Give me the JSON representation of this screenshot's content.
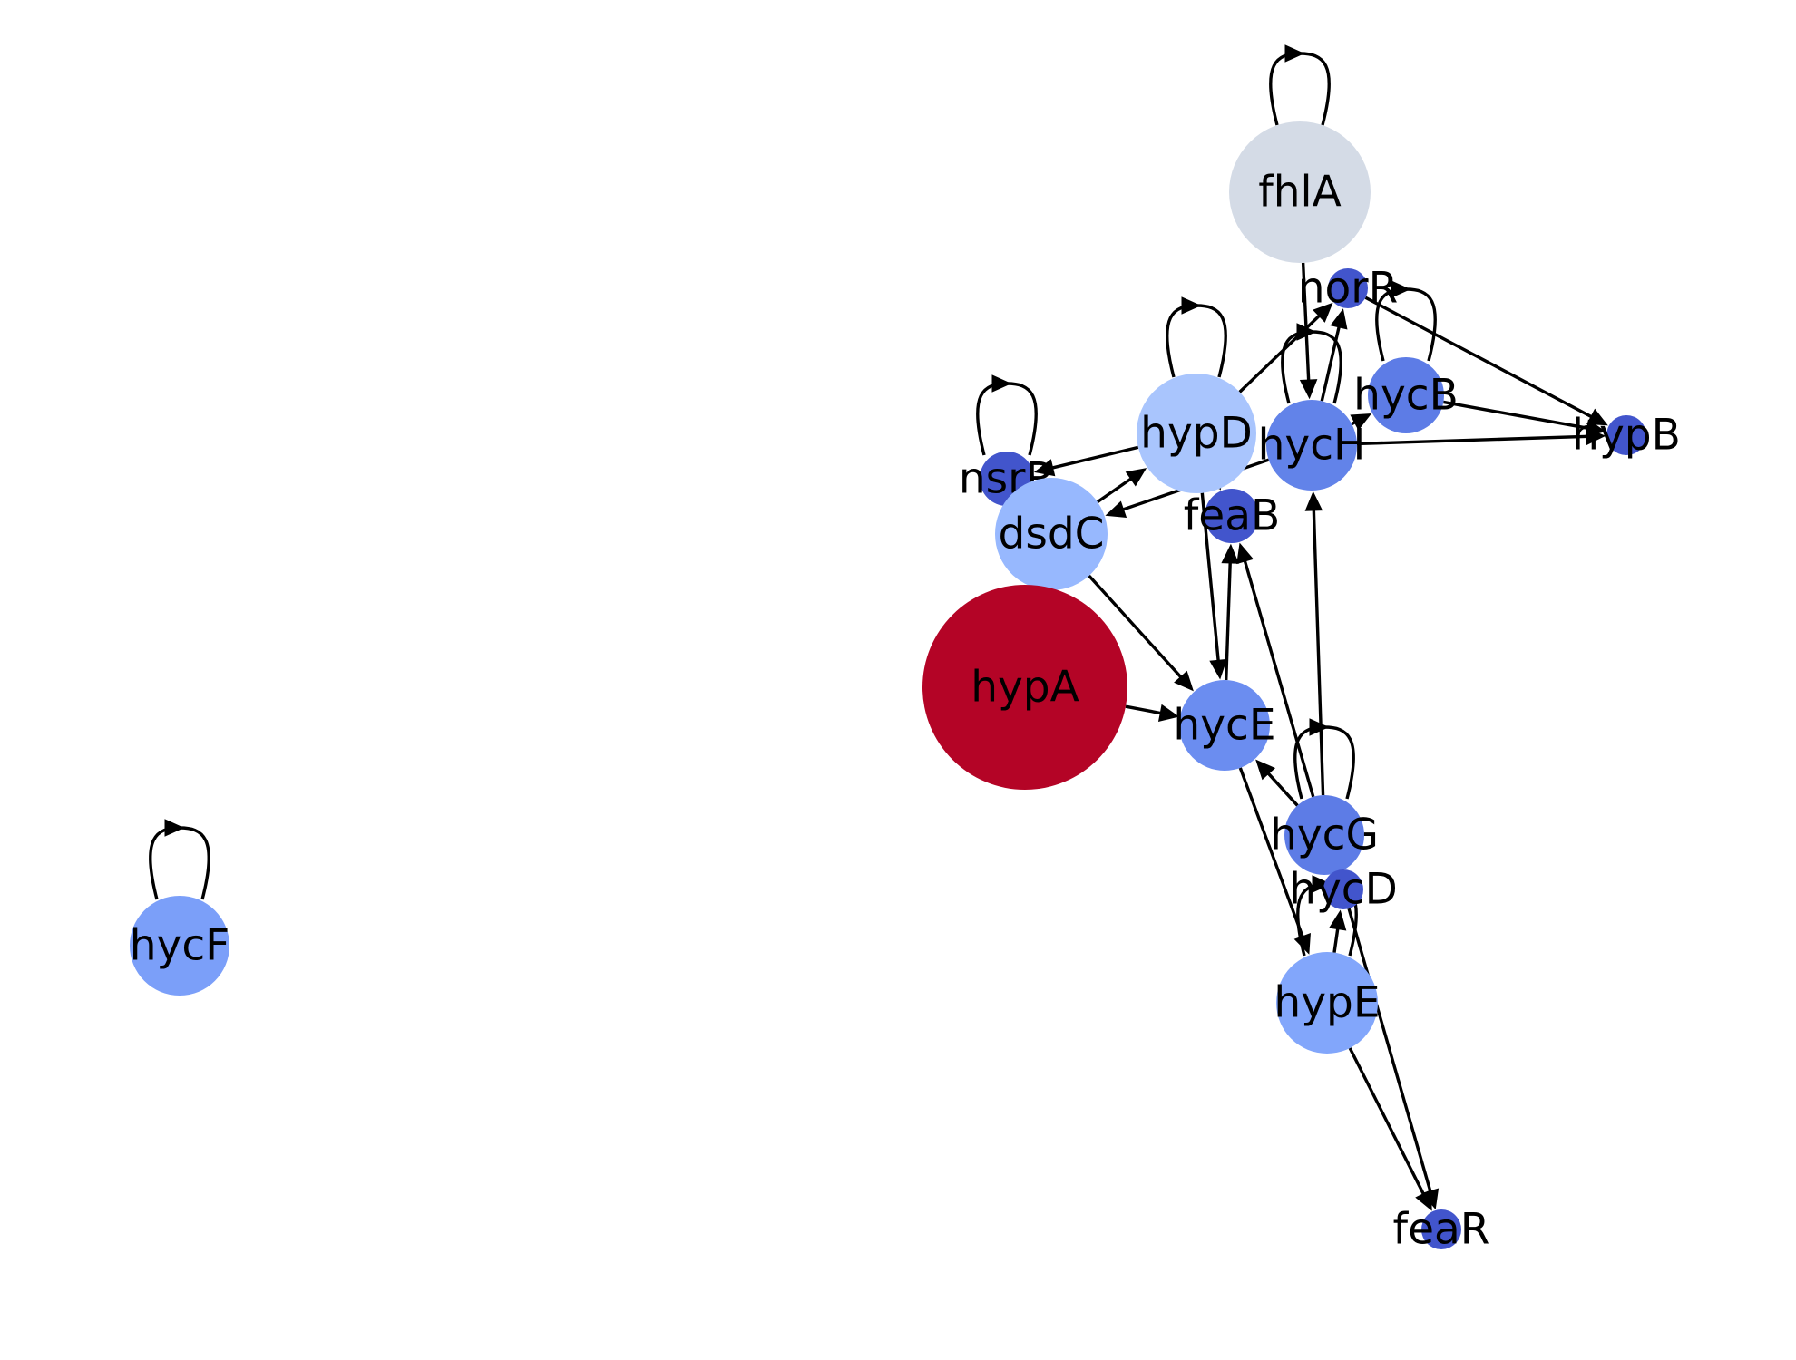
{
  "graph": {
    "nodes": [
      {
        "id": "fhlA",
        "label": "fhlA",
        "color": "#d4dbe6"
      },
      {
        "id": "norR",
        "label": "norR",
        "color": "#4255cc"
      },
      {
        "id": "hycB",
        "label": "hycB",
        "color": "#5d7ce6"
      },
      {
        "id": "hypB",
        "label": "hypB",
        "color": "#4255cc"
      },
      {
        "id": "hycH",
        "label": "hycH",
        "color": "#6283e9"
      },
      {
        "id": "hypD",
        "label": "hypD",
        "color": "#a9c5fd"
      },
      {
        "id": "nsrR",
        "label": "nsrR",
        "color": "#4255cc"
      },
      {
        "id": "dsdC",
        "label": "dsdC",
        "color": "#97b8fe"
      },
      {
        "id": "feaB",
        "label": "feaB",
        "color": "#4255cc"
      },
      {
        "id": "hypA",
        "label": "hypA",
        "color": "#b40426"
      },
      {
        "id": "hycE",
        "label": "hycE",
        "color": "#6b8df0"
      },
      {
        "id": "hycG",
        "label": "hycG",
        "color": "#5d7ce6"
      },
      {
        "id": "hycD",
        "label": "hycD",
        "color": "#4255cc"
      },
      {
        "id": "hypE",
        "label": "hypE",
        "color": "#82a6fb"
      },
      {
        "id": "feaR",
        "label": "feaR",
        "color": "#4255cc"
      },
      {
        "id": "hycF",
        "label": "hycF",
        "color": "#7b9ff9"
      }
    ],
    "edges": [
      {
        "from": "fhlA",
        "to": "fhlA"
      },
      {
        "from": "fhlA",
        "to": "hycH"
      },
      {
        "from": "hypD",
        "to": "hypD"
      },
      {
        "from": "hypD",
        "to": "norR"
      },
      {
        "from": "hypD",
        "to": "nsrR"
      },
      {
        "from": "hypD",
        "to": "feaB"
      },
      {
        "from": "hypD",
        "to": "hycE"
      },
      {
        "from": "nsrR",
        "to": "nsrR"
      },
      {
        "from": "hycH",
        "to": "hycH"
      },
      {
        "from": "hycH",
        "to": "norR"
      },
      {
        "from": "hycH",
        "to": "hycB"
      },
      {
        "from": "hycH",
        "to": "hypB"
      },
      {
        "from": "hycH",
        "to": "dsdC"
      },
      {
        "from": "hycB",
        "to": "hycB"
      },
      {
        "from": "hycB",
        "to": "hypB"
      },
      {
        "from": "norR",
        "to": "hypB"
      },
      {
        "from": "dsdC",
        "to": "hypD"
      },
      {
        "from": "dsdC",
        "to": "hycE"
      },
      {
        "from": "hypA",
        "to": "dsdC"
      },
      {
        "from": "hypA",
        "to": "hycE"
      },
      {
        "from": "hycE",
        "to": "feaB"
      },
      {
        "from": "hycE",
        "to": "hypE"
      },
      {
        "from": "hycG",
        "to": "hycG"
      },
      {
        "from": "hycG",
        "to": "hycH"
      },
      {
        "from": "hycG",
        "to": "feaB"
      },
      {
        "from": "hycG",
        "to": "hycE"
      },
      {
        "from": "hycD",
        "to": "feaR"
      },
      {
        "from": "hypE",
        "to": "hypE"
      },
      {
        "from": "hypE",
        "to": "hycD"
      },
      {
        "from": "hypE",
        "to": "feaR"
      },
      {
        "from": "hycF",
        "to": "hycF"
      }
    ]
  }
}
